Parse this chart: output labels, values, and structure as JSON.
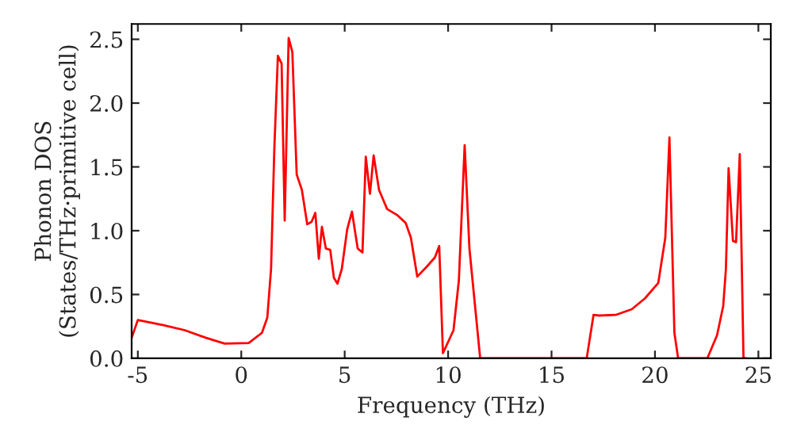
{
  "chart_data": {
    "type": "line",
    "xlabel": "Frequency (THz)",
    "ylabel": "Phonon DOS\n(States/THz·primitive cell)",
    "xlim": [
      -5.3,
      25.6
    ],
    "ylim": [
      0,
      2.62
    ],
    "xticks": [
      -5,
      0,
      5,
      10,
      15,
      20,
      25
    ],
    "yticks": [
      {
        "value": 0,
        "label": "0.0"
      },
      {
        "value": 0.5,
        "label": "0.5"
      },
      {
        "value": 1,
        "label": "1.0"
      },
      {
        "value": 1.5,
        "label": "1.5"
      },
      {
        "value": 2,
        "label": "2.0"
      },
      {
        "value": 2.5,
        "label": "2.5"
      }
    ],
    "grid": false,
    "legend": false,
    "marker": "none",
    "line_style": "solid",
    "series": [
      {
        "color": "#ff0000",
        "x": [
          -5.3,
          -5.0,
          -3.76,
          -2.73,
          -1.7,
          -0.8,
          0.36,
          1.0,
          1.26,
          1.44,
          1.6,
          1.77,
          1.95,
          2.1,
          2.29,
          2.47,
          2.68,
          2.93,
          3.19,
          3.4,
          3.58,
          3.75,
          3.9,
          4.09,
          4.3,
          4.48,
          4.65,
          4.86,
          5.12,
          5.35,
          5.63,
          5.86,
          6.02,
          6.22,
          6.4,
          6.66,
          7.05,
          7.56,
          7.95,
          8.2,
          8.51,
          8.98,
          9.36,
          9.57,
          9.75,
          10.26,
          10.52,
          10.8,
          11.03,
          11.55,
          16.7,
          17.03,
          17.3,
          18.1,
          18.88,
          19.52,
          20.16,
          20.5,
          20.7,
          20.94,
          21.12,
          22.53,
          23.0,
          23.3,
          23.43,
          23.56,
          23.77,
          23.92,
          24.1,
          24.28,
          24.4
        ],
        "values": [
          0.16,
          0.3,
          0.26,
          0.22,
          0.16,
          0.115,
          0.12,
          0.2,
          0.32,
          0.7,
          1.65,
          2.37,
          2.31,
          1.08,
          2.51,
          2.4,
          1.44,
          1.32,
          1.05,
          1.07,
          1.14,
          0.78,
          1.03,
          0.86,
          0.85,
          0.63,
          0.585,
          0.7,
          1.01,
          1.15,
          0.86,
          0.83,
          1.58,
          1.29,
          1.59,
          1.32,
          1.17,
          1.12,
          1.06,
          0.945,
          0.64,
          0.72,
          0.79,
          0.88,
          0.04,
          0.22,
          0.61,
          1.67,
          0.86,
          0,
          0,
          0.34,
          0.335,
          0.34,
          0.385,
          0.47,
          0.59,
          0.945,
          1.73,
          0.2,
          0,
          0,
          0.18,
          0.41,
          0.7,
          1.49,
          0.92,
          0.91,
          1.6,
          0,
          0
        ]
      }
    ]
  }
}
